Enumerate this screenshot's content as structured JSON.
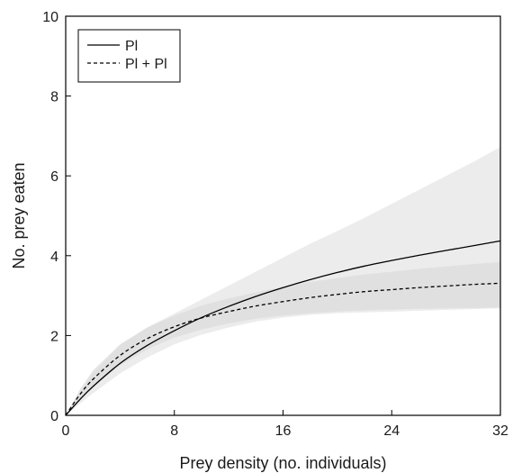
{
  "chart_data": {
    "type": "line",
    "title": "",
    "xlabel": "Prey density (no. individuals)",
    "ylabel": "No. prey eaten",
    "xlim": [
      0,
      32
    ],
    "ylim": [
      0,
      10
    ],
    "xticks": [
      0,
      8,
      16,
      24,
      32
    ],
    "yticks": [
      0,
      2,
      4,
      6,
      8,
      10
    ],
    "grid": false,
    "legend_position": "top-left",
    "series": [
      {
        "name": "Pl",
        "line_style": "solid",
        "color": "#000000",
        "x": [
          0,
          1,
          2,
          4,
          6,
          8,
          10,
          12,
          14,
          16,
          18,
          20,
          22,
          24,
          26,
          28,
          30,
          32
        ],
        "y": [
          0,
          0.38,
          0.72,
          1.3,
          1.75,
          2.12,
          2.45,
          2.73,
          2.98,
          3.2,
          3.4,
          3.58,
          3.74,
          3.88,
          4.01,
          4.13,
          4.25,
          4.37
        ],
        "ci_lower": [
          0,
          0.28,
          0.55,
          1.05,
          1.45,
          1.78,
          2.02,
          2.2,
          2.35,
          2.45,
          2.52,
          2.56,
          2.58,
          2.6,
          2.62,
          2.64,
          2.66,
          2.68
        ],
        "ci_upper": [
          0,
          0.55,
          1.05,
          1.75,
          2.2,
          2.55,
          2.9,
          3.25,
          3.6,
          3.95,
          4.3,
          4.62,
          4.95,
          5.3,
          5.65,
          6.0,
          6.35,
          6.72
        ],
        "ci_color": "#ececec"
      },
      {
        "name": "Pl + Pl",
        "line_style": "dashed",
        "color": "#000000",
        "x": [
          0,
          1,
          2,
          4,
          6,
          8,
          10,
          12,
          14,
          16,
          18,
          20,
          22,
          24,
          26,
          28,
          30,
          32
        ],
        "y": [
          0,
          0.5,
          0.9,
          1.5,
          1.92,
          2.22,
          2.44,
          2.6,
          2.74,
          2.85,
          2.95,
          3.03,
          3.1,
          3.15,
          3.2,
          3.24,
          3.28,
          3.31
        ],
        "ci_lower": [
          0,
          0.38,
          0.72,
          1.25,
          1.65,
          1.95,
          2.15,
          2.3,
          2.42,
          2.5,
          2.56,
          2.6,
          2.63,
          2.65,
          2.67,
          2.68,
          2.69,
          2.7
        ],
        "ci_upper": [
          0,
          0.62,
          1.12,
          1.78,
          2.2,
          2.5,
          2.75,
          2.93,
          3.08,
          3.22,
          3.34,
          3.44,
          3.53,
          3.6,
          3.67,
          3.73,
          3.79,
          3.84
        ],
        "ci_color": "#dcdcdc"
      }
    ]
  }
}
